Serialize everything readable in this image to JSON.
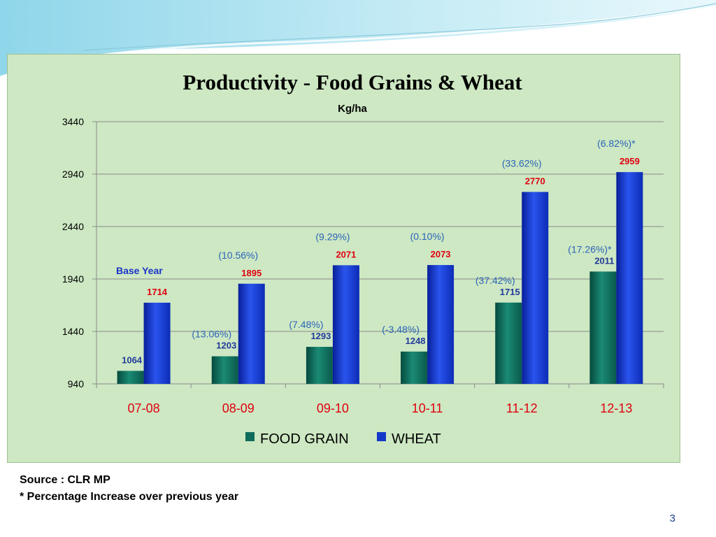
{
  "colors": {
    "food_grain": "#0f6b5a",
    "wheat": "#1238c9",
    "wheat_value": "#e0000f",
    "food_value": "#233a9a",
    "pct_label": "#2b63b8",
    "xtick": "#e0000f",
    "base_year": "#1a33c8"
  },
  "chart_data": {
    "type": "bar",
    "title": "Productivity - Food Grains & Wheat",
    "unit": "Kg/ha",
    "categories": [
      "07-08",
      "08-09",
      "09-10",
      "10-11",
      "11-12",
      "12-13"
    ],
    "ylim": [
      940,
      3440
    ],
    "yticks": [
      "940",
      "1440",
      "1940",
      "2440",
      "2940",
      "3440"
    ],
    "grid": true,
    "legend": "bottom",
    "base_year_label": "Base Year",
    "series": [
      {
        "name": "FOOD GRAIN",
        "values": [
          1064,
          1203,
          1293,
          1248,
          1715,
          2011
        ],
        "labels": [
          "1064",
          "1203",
          "1293",
          "1248",
          "1715",
          "2011"
        ],
        "pct": [
          "",
          "(13.06%)",
          "(7.48%)",
          "(-3.48%)",
          "(37.42%)",
          "(17.26%)*"
        ]
      },
      {
        "name": "WHEAT",
        "values": [
          1714,
          1895,
          2071,
          2073,
          2770,
          2959
        ],
        "labels": [
          "1714",
          "1895",
          "2071",
          "2073",
          "2770",
          "2959"
        ],
        "pct": [
          "",
          "(10.56%)",
          "(9.29%)",
          "(0.10%)",
          "(33.62%)",
          "(6.82%)*"
        ]
      }
    ]
  },
  "footer": {
    "source": "Source : CLR MP",
    "footnote": "* Percentage Increase over previous year",
    "page_number": "3"
  }
}
